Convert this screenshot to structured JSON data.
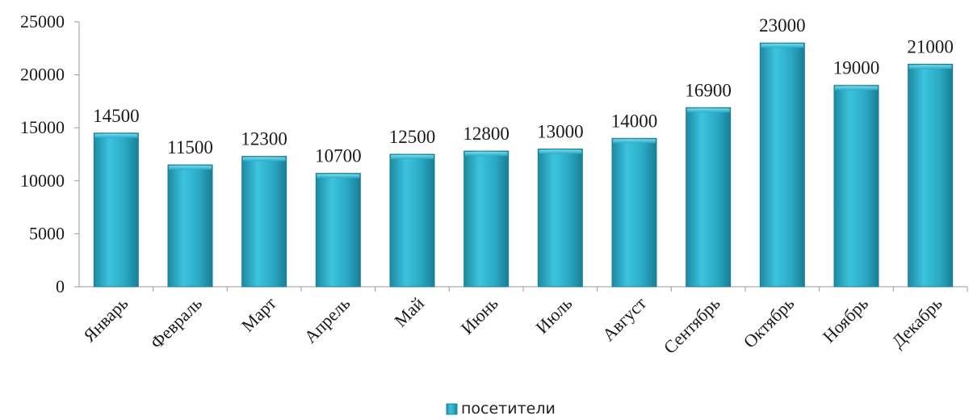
{
  "chart_data": {
    "type": "bar",
    "categories": [
      "Январь",
      "Февраль",
      "Март",
      "Апрель",
      "Май",
      "Июнь",
      "Июль",
      "Август",
      "Сентябрь",
      "Октябрь",
      "Ноябрь",
      "Декабрь"
    ],
    "series": [
      {
        "name": "посетители",
        "values": [
          14500,
          11500,
          12300,
          10700,
          12500,
          12800,
          13000,
          14000,
          16900,
          23000,
          19000,
          21000
        ],
        "color": "#2aa9c4"
      }
    ],
    "ylim": [
      0,
      25000
    ],
    "yticks": [
      0,
      5000,
      10000,
      15000,
      20000,
      25000
    ],
    "data_labels": true,
    "grid": false,
    "legend_position": "bottom",
    "xlabel": "",
    "ylabel": ""
  }
}
